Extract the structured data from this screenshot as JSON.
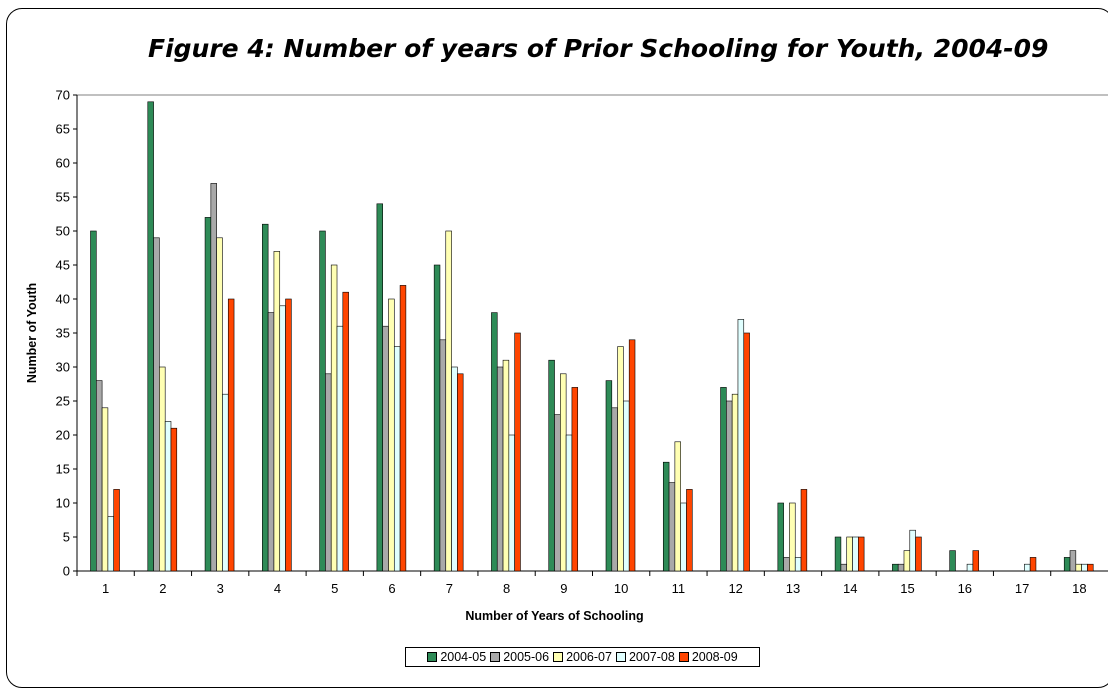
{
  "title": "Figure 4:  Number of years of Prior Schooling for Youth, 2004-09",
  "chart_data": {
    "type": "bar",
    "title": "Figure 4:  Number of years of Prior Schooling for Youth, 2004-09",
    "xlabel": "Number of Years of Schooling",
    "ylabel": "Number of Youth",
    "ylim": [
      0,
      70
    ],
    "yticks": [
      0,
      5,
      10,
      15,
      20,
      25,
      30,
      35,
      40,
      45,
      50,
      55,
      60,
      65,
      70
    ],
    "grid": "top border only",
    "legend_position": "bottom",
    "categories": [
      "1",
      "2",
      "3",
      "4",
      "5",
      "6",
      "7",
      "8",
      "9",
      "10",
      "11",
      "12",
      "13",
      "14",
      "15",
      "16",
      "17",
      "18"
    ],
    "series": [
      {
        "name": "2004-05",
        "color": "#2e8b57",
        "values": [
          50,
          69,
          52,
          51,
          50,
          54,
          45,
          38,
          31,
          28,
          16,
          27,
          10,
          5,
          1,
          3,
          0,
          2
        ]
      },
      {
        "name": "2005-06",
        "color": "#a9a9a9",
        "values": [
          28,
          49,
          57,
          38,
          29,
          36,
          34,
          30,
          23,
          24,
          13,
          25,
          2,
          1,
          1,
          0,
          0,
          3
        ]
      },
      {
        "name": "2006-07",
        "color": "#ffffb3",
        "values": [
          24,
          30,
          49,
          47,
          45,
          40,
          50,
          31,
          29,
          33,
          19,
          26,
          10,
          5,
          3,
          0,
          0,
          1
        ]
      },
      {
        "name": "2007-08",
        "color": "#e0ffff",
        "values": [
          8,
          22,
          26,
          39,
          36,
          33,
          30,
          20,
          20,
          25,
          10,
          37,
          2,
          5,
          6,
          1,
          1,
          1
        ]
      },
      {
        "name": "2008-09",
        "color": "#ff4500",
        "values": [
          12,
          21,
          40,
          40,
          41,
          42,
          29,
          35,
          27,
          34,
          12,
          35,
          12,
          5,
          5,
          3,
          2,
          1
        ]
      }
    ]
  }
}
